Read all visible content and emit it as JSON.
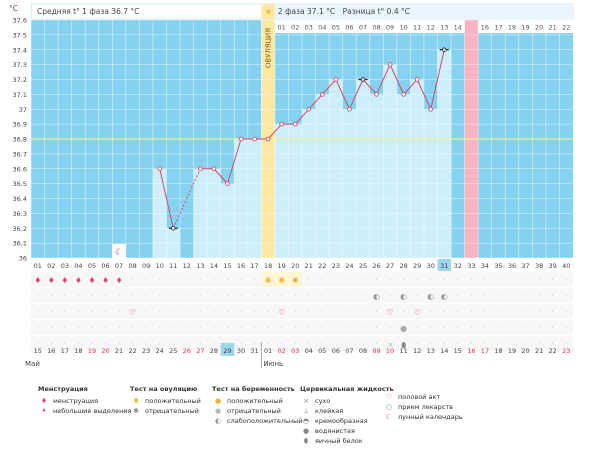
{
  "header": {
    "phase1_label": "Средняя t° 1 фаза 36.7 °C",
    "phase2_label": "2 фаза  37.1 °C",
    "diff_label": "Разница t° 0.4 °C",
    "unit_label": "°C",
    "ovulation_label": "ОВУЛЯЦИЯ"
  },
  "colors": {
    "phase1_bg": "#ffffff",
    "phase2_bg": "#eaf6fd",
    "chart_bg": "#85d2f0",
    "bar_fill": "#cfeefc",
    "ovulation_bg": "#fde9a3",
    "ovulation_border": "#f2c94c",
    "marked_day_bg": "#f8b4c4",
    "line": "#d24a6a",
    "coverline": "#e8f58a",
    "today_bg": "#9ed6ef"
  },
  "chart_data": {
    "type": "line",
    "ylabel": "°C",
    "ylim": [
      36.0,
      37.6
    ],
    "yticks": [
      "36",
      "36.1",
      "36.2",
      "36.3",
      "36.4",
      "36.5",
      "36.6",
      "36.7",
      "36.8",
      "36.9",
      "37",
      "37.1",
      "37.2",
      "37.3",
      "37.4",
      "37.5",
      "37.6"
    ],
    "cycle_days": [
      "01",
      "02",
      "03",
      "04",
      "05",
      "06",
      "07",
      "08",
      "09",
      "10",
      "11",
      "12",
      "13",
      "14",
      "15",
      "16",
      "17",
      "18",
      "19",
      "20",
      "21",
      "22",
      "23",
      "24",
      "25",
      "26",
      "27",
      "28",
      "29",
      "30",
      "31",
      "32",
      "33",
      "34",
      "35",
      "36",
      "37",
      "38",
      "39",
      "40"
    ],
    "phase2_days": [
      "01",
      "02",
      "03",
      "04",
      "05",
      "06",
      "07",
      "08",
      "09",
      "10",
      "11",
      "12",
      "13",
      "14",
      "15",
      "16",
      "17",
      "18",
      "19",
      "20",
      "21",
      "22"
    ],
    "dates": [
      "15",
      "16",
      "17",
      "18",
      "19",
      "20",
      "21",
      "22",
      "23",
      "24",
      "25",
      "26",
      "27",
      "28",
      "29",
      "30",
      "31",
      "01",
      "02",
      "03",
      "04",
      "05",
      "06",
      "07",
      "08",
      "09",
      "10",
      "11",
      "12",
      "13",
      "14",
      "15",
      "16",
      "17",
      "18",
      "19",
      "20",
      "21",
      "22",
      "23"
    ],
    "month_labels": [
      "Май",
      "Июнь"
    ],
    "series": [
      {
        "values": [
          null,
          null,
          null,
          null,
          null,
          null,
          null,
          null,
          null,
          36.6,
          36.2,
          null,
          36.6,
          36.6,
          36.5,
          36.8,
          36.8,
          36.8,
          36.9,
          36.9,
          37.0,
          37.1,
          37.2,
          37.0,
          37.2,
          37.1,
          37.3,
          37.1,
          37.2,
          37.0,
          37.4,
          null,
          null,
          null,
          null,
          null,
          null,
          null,
          null,
          null
        ]
      }
    ],
    "excluded_points": [
      11,
      25,
      31
    ],
    "dashed_segments": [
      [
        11,
        13
      ]
    ],
    "coverline": 36.8,
    "ovulation_day": 18,
    "marked_day": 33,
    "today_day": 31,
    "today_date_index": 14,
    "menstruation_days": [
      1,
      2,
      3,
      4,
      5,
      6,
      7
    ],
    "moon_day": 7,
    "ovulation_test_positive_days": [
      18,
      19,
      20
    ],
    "pregnancy_test_days": [
      26,
      28,
      30,
      31
    ],
    "intercourse_days": [
      8,
      19,
      27,
      29
    ],
    "mucus_day": 28
  },
  "legend": {
    "menstruation": {
      "title": "Менструация",
      "items": [
        "менструация",
        "небольшие выделения"
      ]
    },
    "ovulation_test": {
      "title": "Тест на овуляцию",
      "items": [
        "положительный",
        "отрицательный"
      ]
    },
    "pregnancy_test": {
      "title": "Тест на беременность",
      "items": [
        "положительный",
        "отрицательный",
        "слабоположительный"
      ]
    },
    "cervical_fluid": {
      "title": "Цервикальная жидкость",
      "items": [
        "сухо",
        "клейкая",
        "кремообразная",
        "водянистая",
        "яичный белок"
      ]
    },
    "other": {
      "items": [
        "половой акт",
        "прием лекарств",
        "лунный календарь"
      ]
    }
  }
}
